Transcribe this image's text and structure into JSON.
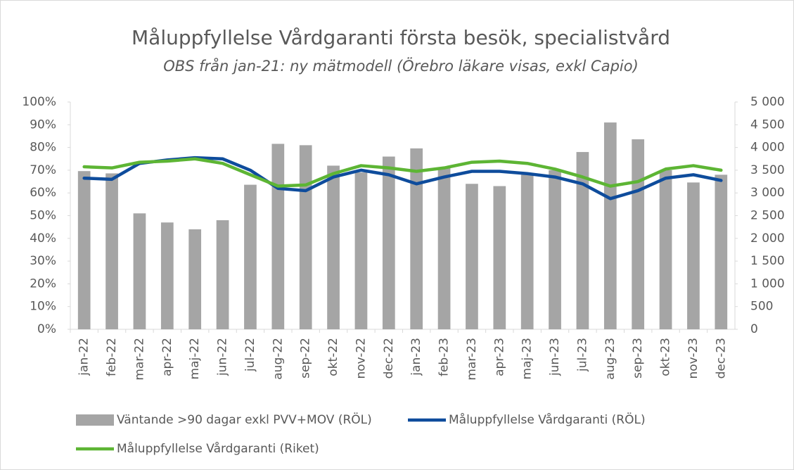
{
  "chart_data": {
    "type": "bar-line",
    "title": "Måluppfyllelse Vårdgaranti första besök, specialistvård",
    "subtitle": "OBS från jan-21: ny mätmodell (Örebro läkare visas, exkl Capio)",
    "categories": [
      "jan-22",
      "feb-22",
      "mar-22",
      "apr-22",
      "maj-22",
      "jun-22",
      "jul-22",
      "aug-22",
      "sep-22",
      "okt-22",
      "nov-22",
      "dec-22",
      "jan-23",
      "feb-23",
      "mar-23",
      "apr-23",
      "maj-23",
      "jun-23",
      "jul-23",
      "aug-23",
      "sep-23",
      "okt-23",
      "nov-23",
      "dec-23"
    ],
    "series": [
      {
        "name": "Väntande >90 dagar exkl PVV+MOV (RÖL)",
        "type": "bar",
        "axis": "y2",
        "color": "#a5a5a5",
        "values": [
          3480,
          3430,
          2550,
          2350,
          2200,
          2400,
          3180,
          4080,
          4050,
          3600,
          3450,
          3800,
          3980,
          3550,
          3200,
          3150,
          3400,
          3500,
          3900,
          4550,
          4180,
          3500,
          3230,
          3400
        ]
      },
      {
        "name": "Måluppfyllelse Vårdgaranti (RÖL)",
        "type": "line",
        "axis": "y",
        "color": "#0e4c9c",
        "values": [
          66.5,
          66,
          73,
          74.5,
          75.5,
          75,
          70,
          62,
          61,
          67,
          70,
          68,
          64,
          67,
          69.5,
          69.5,
          68.5,
          67,
          64,
          57.5,
          61,
          66.5,
          68,
          65.5
        ]
      },
      {
        "name": "Måluppfyllelse Vårdgaranti (Riket)",
        "type": "line",
        "axis": "y",
        "color": "#5db534",
        "values": [
          71.5,
          71,
          73.5,
          74,
          75,
          73,
          68,
          63,
          63.5,
          68.5,
          72,
          71,
          69.5,
          71,
          73.5,
          74,
          73,
          70.5,
          67,
          63,
          65,
          70.5,
          72,
          70
        ]
      }
    ],
    "ylim": [
      0,
      100
    ],
    "yticks": [
      {
        "value": 0,
        "label": "0%"
      },
      {
        "value": 10,
        "label": "10%"
      },
      {
        "value": 20,
        "label": "20%"
      },
      {
        "value": 30,
        "label": "30%"
      },
      {
        "value": 40,
        "label": "40%"
      },
      {
        "value": 50,
        "label": "50%"
      },
      {
        "value": 60,
        "label": "60%"
      },
      {
        "value": 70,
        "label": "70%"
      },
      {
        "value": 80,
        "label": "80%"
      },
      {
        "value": 90,
        "label": "90%"
      },
      {
        "value": 100,
        "label": "100%"
      }
    ],
    "y2lim": [
      0,
      5000
    ],
    "y2ticks": [
      0,
      500,
      {
        "value": 1000,
        "label": "1 000"
      },
      {
        "value": 1500,
        "label": "1 500"
      },
      {
        "value": 2000,
        "label": "2 000"
      },
      {
        "value": 2500,
        "label": "2 500"
      },
      {
        "value": 3000,
        "label": "3 000"
      },
      {
        "value": 3500,
        "label": "3 500"
      },
      {
        "value": 4000,
        "label": "4 000"
      },
      {
        "value": 4500,
        "label": "4 500"
      },
      {
        "value": 5000,
        "label": "5 000"
      }
    ],
    "legend": "bottom"
  }
}
